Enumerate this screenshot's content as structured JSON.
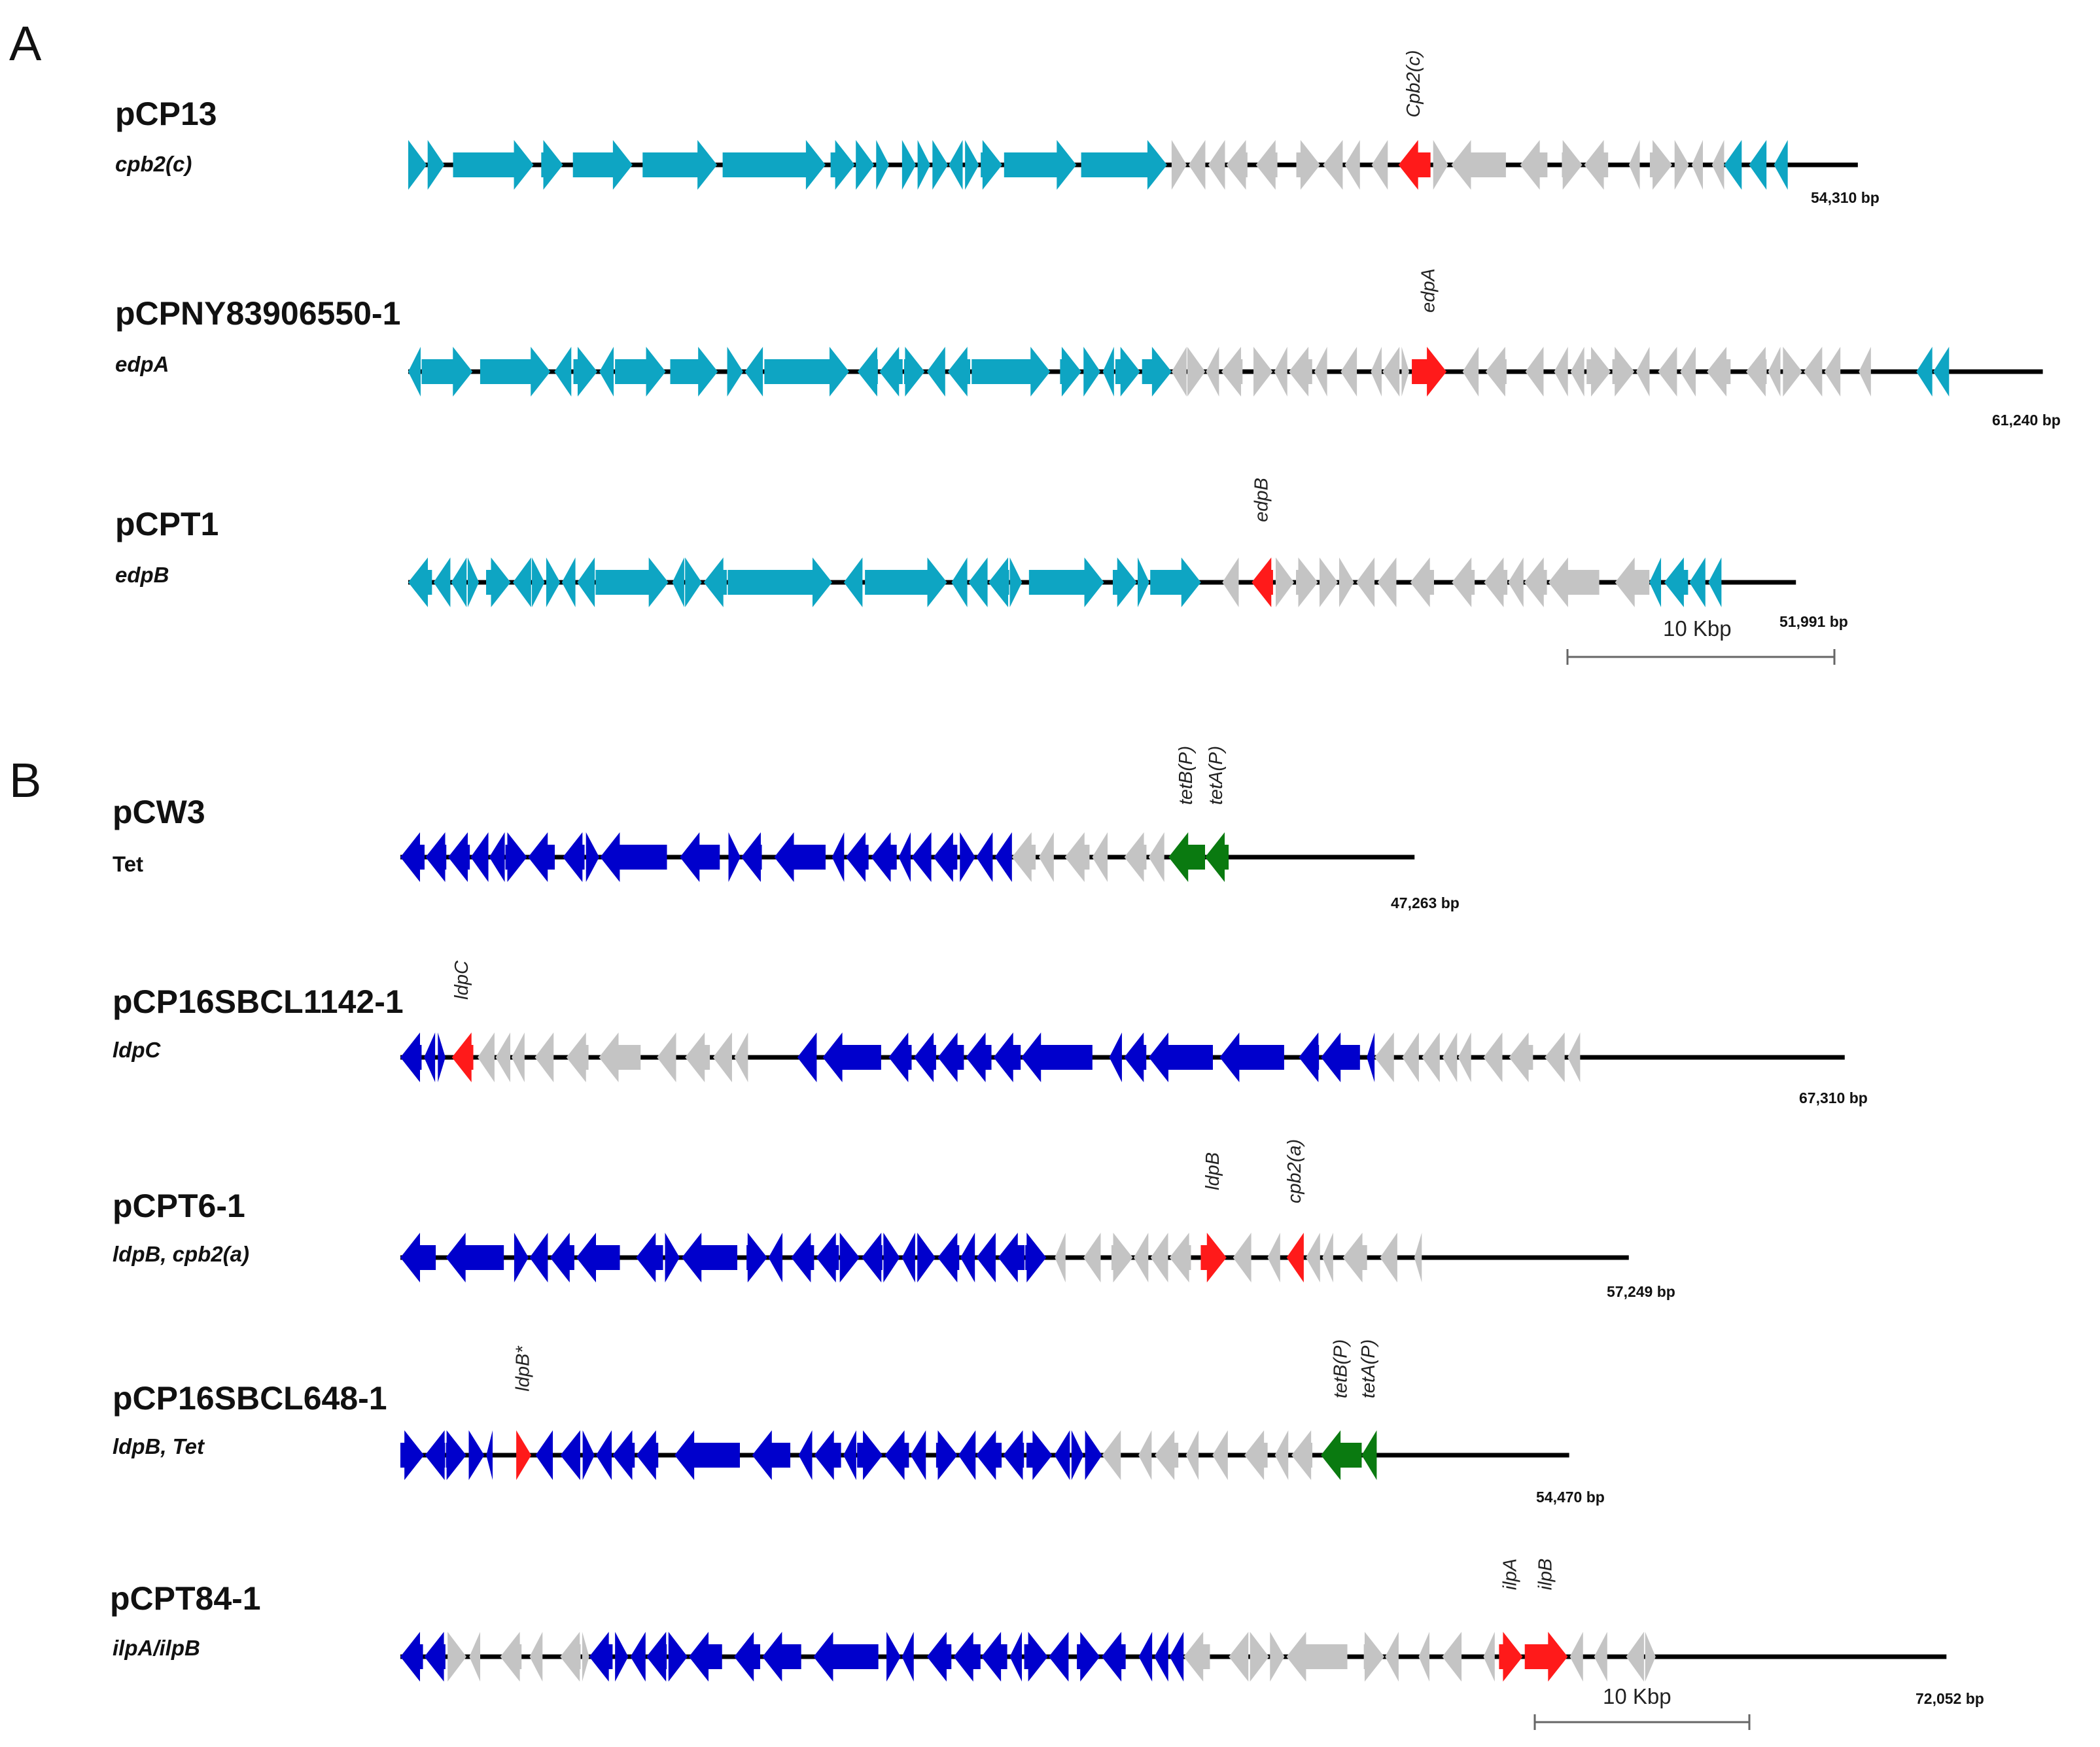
{
  "figure": {
    "panels": [
      {
        "id": "A",
        "label": "A",
        "scale_bar": {
          "label": "10 Kbp",
          "kbp": 10
        },
        "plasmids": [
          {
            "name": "pCP13",
            "subtitle": "cpb2(c)",
            "subtitle_italic": true,
            "size_label": "54,310 bp",
            "size_bp": 54310,
            "segments": [
              {
                "color": "#0ea5c3",
                "start": 0,
                "end": 28.6,
                "pattern": "mixedA"
              },
              {
                "color": "#c4c4c4",
                "start": 28.6,
                "end": 37.0,
                "pattern": "rev"
              },
              {
                "color": "#c4c4c4",
                "start": 38.4,
                "end": 49.3,
                "pattern": "mixed"
              },
              {
                "color": "#0ea5c3",
                "start": 49.3,
                "end": 51.7,
                "pattern": "rev"
              }
            ],
            "highlights": [
              {
                "label": "Cpb2(c)",
                "color": "#ff1a1a",
                "start": 37.1,
                "end": 38.3,
                "dir": -1
              }
            ]
          },
          {
            "name": "pCPNY83906550-1",
            "subtitle": "edpA",
            "subtitle_italic": true,
            "size_label": "61,240 bp",
            "size_bp": 61240,
            "segments": [
              {
                "color": "#0ea5c3",
                "start": 0,
                "end": 28.6,
                "pattern": "mixedA"
              },
              {
                "color": "#c4c4c4",
                "start": 28.6,
                "end": 37.5,
                "pattern": "rev"
              },
              {
                "color": "#c4c4c4",
                "start": 39.5,
                "end": 54.8,
                "pattern": "rev"
              },
              {
                "color": "#0ea5c3",
                "start": 56.5,
                "end": 58.4,
                "pattern": "rev"
              }
            ],
            "highlights": [
              {
                "label": "edpA",
                "color": "#ff1a1a",
                "start": 37.6,
                "end": 38.9,
                "dir": 1
              }
            ]
          },
          {
            "name": "pCPT1",
            "subtitle": "edpB",
            "subtitle_italic": true,
            "size_label": "51,991 bp",
            "size_bp": 51991,
            "segments": [
              {
                "color": "#0ea5c3",
                "start": 0,
                "end": 29.7,
                "pattern": "mixedA"
              },
              {
                "color": "#c4c4c4",
                "start": 30.5,
                "end": 31.4,
                "pattern": "rev"
              },
              {
                "color": "#c4c4c4",
                "start": 32.5,
                "end": 46.5,
                "pattern": "mixed"
              },
              {
                "color": "#0ea5c3",
                "start": 46.5,
                "end": 49.2,
                "pattern": "rev"
              }
            ],
            "highlights": [
              {
                "label": "edpB",
                "color": "#ff1a1a",
                "start": 31.6,
                "end": 32.4,
                "dir": -1
              }
            ]
          }
        ]
      },
      {
        "id": "B",
        "label": "B",
        "scale_bar": {
          "label": "10 Kbp",
          "kbp": 10
        },
        "plasmids": [
          {
            "name": "pCW3",
            "subtitle": "Tet",
            "subtitle_italic": false,
            "size_label": "47,263 bp",
            "size_bp": 47263,
            "segments": [
              {
                "color": "#0000cc",
                "start": 0,
                "end": 28.5,
                "pattern": "mixedB"
              },
              {
                "color": "#c4c4c4",
                "start": 28.5,
                "end": 35.6,
                "pattern": "rev"
              }
            ],
            "highlights": [
              {
                "label": "tetB(P)",
                "color": "#0a7a10",
                "start": 35.8,
                "end": 37.5,
                "dir": -1
              },
              {
                "label": "tetA(P)",
                "color": "#0a7a10",
                "start": 37.5,
                "end": 38.6,
                "dir": -1
              }
            ]
          },
          {
            "name": "pCP16SBCL1142-1",
            "subtitle": "ldpC",
            "subtitle_italic": true,
            "size_label": "67,310 bp",
            "size_bp": 67310,
            "segments": [
              {
                "color": "#0000cc",
                "start": 0,
                "end": 2.1,
                "pattern": "rev"
              },
              {
                "color": "#c4c4c4",
                "start": 3.6,
                "end": 16.2,
                "pattern": "mixed"
              },
              {
                "color": "#0000cc",
                "start": 18.5,
                "end": 45.4,
                "pattern": "mixedB"
              },
              {
                "color": "#c4c4c4",
                "start": 45.4,
                "end": 56.0,
                "pattern": "rev"
              }
            ],
            "highlights": [
              {
                "label": "ldpC",
                "color": "#ff1a1a",
                "start": 2.4,
                "end": 3.4,
                "dir": -1
              }
            ]
          },
          {
            "name": "pCPT6-1",
            "subtitle": "ldpB, cpb2(a)",
            "subtitle_italic": true,
            "size_label": "57,249 bp",
            "size_bp": 57249,
            "segments": [
              {
                "color": "#0000cc",
                "start": 0,
                "end": 30.1,
                "pattern": "mixedB"
              },
              {
                "color": "#c4c4c4",
                "start": 30.5,
                "end": 37.1,
                "pattern": "rev"
              },
              {
                "color": "#c4c4c4",
                "start": 38.8,
                "end": 41.0,
                "pattern": "rev"
              },
              {
                "color": "#c4c4c4",
                "start": 42.2,
                "end": 47.6,
                "pattern": "rev"
              }
            ],
            "highlights": [
              {
                "label": "ldpB",
                "color": "#ff1a1a",
                "start": 37.3,
                "end": 38.5,
                "dir": 1
              },
              {
                "label": "cpb2(a)",
                "color": "#ff1a1a",
                "start": 41.3,
                "end": 42.1,
                "dir": -1
              }
            ]
          },
          {
            "name": "pCP16SBCL648-1",
            "subtitle": "ldpB, Tet",
            "subtitle_italic": true,
            "size_label": "54,470 bp",
            "size_bp": 54470,
            "segments": [
              {
                "color": "#0000cc",
                "start": 0,
                "end": 4.3,
                "pattern": "rev"
              },
              {
                "color": "#0000cc",
                "start": 6.3,
                "end": 32.7,
                "pattern": "mixedB"
              },
              {
                "color": "#c4c4c4",
                "start": 32.7,
                "end": 42.8,
                "pattern": "rev"
              }
            ],
            "highlights": [
              {
                "label": "ldpB*",
                "color": "#ff1a1a",
                "start": 5.4,
                "end": 6.1,
                "dir": 1
              },
              {
                "label": "tetB(P)",
                "color": "#0a7a10",
                "start": 42.9,
                "end": 44.8,
                "dir": -1
              },
              {
                "label": "tetA(P)",
                "color": "#0a7a10",
                "start": 44.8,
                "end": 45.5,
                "dir": -1
              }
            ]
          },
          {
            "name": "pCPT84-1",
            "subtitle": "ilpA/ilpB",
            "subtitle_italic": true,
            "size_label": "72,052 bp",
            "size_bp": 72052,
            "segments": [
              {
                "color": "#0000cc",
                "start": 0,
                "end": 2.1,
                "pattern": "rev"
              },
              {
                "color": "#c4c4c4",
                "start": 2.2,
                "end": 8.8,
                "pattern": "rev"
              },
              {
                "color": "#0000cc",
                "start": 8.8,
                "end": 36.5,
                "pattern": "mixedB"
              },
              {
                "color": "#c4c4c4",
                "start": 36.5,
                "end": 51.0,
                "pattern": "mixed"
              },
              {
                "color": "#c4c4c4",
                "start": 54.5,
                "end": 58.5,
                "pattern": "rev"
              }
            ],
            "highlights": [
              {
                "label": "ilpA",
                "color": "#ff1a1a",
                "start": 51.2,
                "end": 52.3,
                "dir": 1
              },
              {
                "label": "ilpB",
                "color": "#ff1a1a",
                "start": 52.4,
                "end": 54.4,
                "dir": 1
              }
            ]
          }
        ]
      }
    ]
  }
}
